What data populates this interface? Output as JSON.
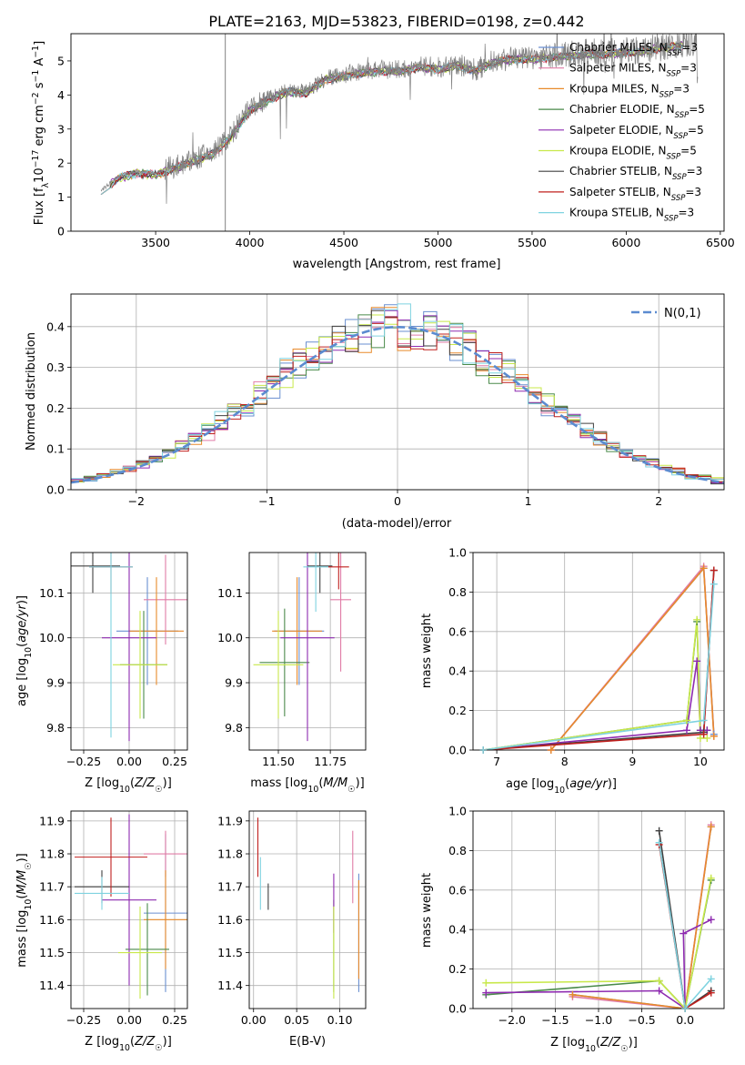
{
  "figure_title": "PLATE=2163, MJD=53823, FIBERID=0198, z=0.442",
  "series_colors": [
    "#6a8fd0",
    "#e07ca6",
    "#e88a2b",
    "#4a8a4a",
    "#8e2bb0",
    "#c8e84a",
    "#404040",
    "#c0201e",
    "#7fd3e0"
  ],
  "series_names": [
    "Chabrier MILES, N_SSP=3",
    "Salpeter MILES, N_SSP=3",
    "Kroupa MILES, N_SSP=3",
    "Chabrier ELODIE, N_SSP=5",
    "Salpeter ELODIE, N_SSP=5",
    "Kroupa ELODIE, N_SSP=5",
    "Chabrier STELIB, N_SSP=3",
    "Salpeter STELIB, N_SSP=3",
    "Kroupa STELIB, N_SSP=3"
  ],
  "chart_data": [
    {
      "id": "spectrum",
      "type": "line",
      "xlabel": "wavelength [Angstrom, rest frame]",
      "ylabel": "Flux [f_λ 10^-17 erg cm^-2 s^-1 A^-1]",
      "xlim": [
        3050,
        6520
      ],
      "ylim": [
        0,
        5.8
      ],
      "xticks": [
        3500,
        4000,
        4500,
        5000,
        5500,
        6000,
        6500
      ],
      "yticks": [
        0,
        1,
        2,
        3,
        4,
        5
      ],
      "legend_position": "right",
      "data_color": "#808080",
      "data_range": [
        3210,
        6380
      ],
      "data_trend": [
        [
          3210,
          1.2
        ],
        [
          3300,
          1.6
        ],
        [
          3400,
          1.75
        ],
        [
          3500,
          1.7
        ],
        [
          3600,
          1.9
        ],
        [
          3700,
          2.1
        ],
        [
          3800,
          2.3
        ],
        [
          3900,
          2.8
        ],
        [
          4000,
          3.6
        ],
        [
          4100,
          3.9
        ],
        [
          4200,
          4.15
        ],
        [
          4300,
          4.1
        ],
        [
          4400,
          4.5
        ],
        [
          4500,
          4.6
        ],
        [
          4600,
          4.7
        ],
        [
          4700,
          4.75
        ],
        [
          4800,
          4.75
        ],
        [
          4900,
          4.85
        ],
        [
          5000,
          4.8
        ],
        [
          5100,
          4.9
        ],
        [
          5200,
          4.75
        ],
        [
          5300,
          5.0
        ],
        [
          5400,
          5.1
        ],
        [
          5500,
          5.1
        ],
        [
          5600,
          5.15
        ],
        [
          5700,
          5.2
        ],
        [
          5800,
          5.25
        ],
        [
          5900,
          5.25
        ],
        [
          6000,
          5.3
        ],
        [
          6100,
          5.35
        ],
        [
          6200,
          5.45
        ],
        [
          6300,
          5.5
        ],
        [
          6380,
          5.6
        ]
      ],
      "models_range": [
        3210,
        6300
      ]
    },
    {
      "id": "residuals",
      "type": "histogram",
      "xlabel": "(data-model)/error",
      "ylabel": "Normed distribution",
      "xlim": [
        -2.5,
        2.5
      ],
      "ylim": [
        0,
        0.48
      ],
      "xticks": [
        -2,
        -1,
        0,
        1,
        2
      ],
      "yticks": [
        0.0,
        0.1,
        0.2,
        0.3,
        0.4
      ],
      "grid": true,
      "legend": "N(0,1)",
      "legend_position": "top-right",
      "bin_width": 0.1,
      "curve": "normal(0,1)"
    },
    {
      "id": "age-vs-Z",
      "type": "errorbar",
      "xlabel": "Z [log10(Z/Z☉)]",
      "ylabel": "age  [log10(age/yr)]",
      "xlim": [
        -0.32,
        0.32
      ],
      "ylim": [
        9.75,
        10.19
      ],
      "xticks": [
        -0.25,
        0.0,
        0.25
      ],
      "yticks": [
        9.8,
        9.9,
        10.0,
        10.1
      ],
      "grid": true,
      "points": [
        {
          "s": 0,
          "x": 0.1,
          "y": 10.015,
          "xe": 0.17,
          "ye": 0.12
        },
        {
          "s": 1,
          "x": 0.2,
          "y": 10.085,
          "xe": 0.12,
          "ye": 0.1
        },
        {
          "s": 2,
          "x": 0.15,
          "y": 10.015,
          "xe": 0.15,
          "ye": 0.12
        },
        {
          "s": 3,
          "x": 0.08,
          "y": 9.94,
          "xe": 0.13,
          "ye": 0.12
        },
        {
          "s": 4,
          "x": 0.0,
          "y": 10.0,
          "xe": 0.15,
          "ye": 0.23
        },
        {
          "s": 5,
          "x": 0.06,
          "y": 9.94,
          "xe": 0.15,
          "ye": 0.12
        },
        {
          "s": 6,
          "x": -0.2,
          "y": 10.16,
          "xe": 0.15,
          "ye": 0.06
        },
        {
          "s": 7,
          "x": -0.1,
          "y": 10.158,
          "xe": 0.12,
          "ye": 0.06
        },
        {
          "s": 8,
          "x": -0.1,
          "y": 10.158,
          "xe": 0.12,
          "ye": 0.38
        }
      ]
    },
    {
      "id": "age-vs-mass",
      "type": "errorbar",
      "xlabel": "mass [log10(M/M☉)]",
      "xlim": [
        11.36,
        11.92
      ],
      "ylim": [
        9.75,
        10.19
      ],
      "xticks": [
        11.5,
        11.75
      ],
      "yticks": [
        9.8,
        9.9,
        10.0,
        10.1
      ],
      "grid": true,
      "points": [
        {
          "s": 0,
          "x": 11.6,
          "y": 10.015,
          "xe": 0.12,
          "ye": 0.12
        },
        {
          "s": 1,
          "x": 11.8,
          "y": 10.085,
          "xe": 0.05,
          "ye": 0.16
        },
        {
          "s": 2,
          "x": 11.59,
          "y": 10.015,
          "xe": 0.12,
          "ye": 0.12
        },
        {
          "s": 3,
          "x": 11.53,
          "y": 9.945,
          "xe": 0.12,
          "ye": 0.12
        },
        {
          "s": 4,
          "x": 11.64,
          "y": 10.0,
          "xe": 0.13,
          "ye": 0.23
        },
        {
          "s": 5,
          "x": 11.5,
          "y": 9.94,
          "xe": 0.12,
          "ye": 0.12
        },
        {
          "s": 6,
          "x": 11.7,
          "y": 10.16,
          "xe": 0.06,
          "ye": 0.06
        },
        {
          "s": 7,
          "x": 11.79,
          "y": 10.158,
          "xe": 0.05,
          "ye": 0.05
        },
        {
          "s": 8,
          "x": 11.68,
          "y": 10.158,
          "xe": 0.06,
          "ye": 0.1
        }
      ]
    },
    {
      "id": "mass-weight-vs-age",
      "type": "line",
      "xlabel": "age  [log10(age/yr)]",
      "ylabel": "mass weight",
      "xlim": [
        6.65,
        10.35
      ],
      "ylim": [
        0,
        1.0
      ],
      "xticks": [
        7,
        8,
        9,
        10
      ],
      "yticks": [
        0.0,
        0.2,
        0.4,
        0.6,
        0.8,
        1.0
      ],
      "grid": true,
      "series": [
        {
          "s": 0,
          "x": [
            7.8,
            10.05,
            10.2
          ],
          "y": [
            0.0,
            0.92,
            0.08
          ]
        },
        {
          "s": 1,
          "x": [
            7.8,
            10.05,
            10.2
          ],
          "y": [
            0.0,
            0.93,
            0.07
          ]
        },
        {
          "s": 2,
          "x": [
            7.8,
            10.05,
            10.2
          ],
          "y": [
            0.0,
            0.92,
            0.07
          ]
        },
        {
          "s": 3,
          "x": [
            6.8,
            9.8,
            9.95,
            10.0,
            10.1
          ],
          "y": [
            0.0,
            0.15,
            0.65,
            0.1,
            0.1
          ]
        },
        {
          "s": 4,
          "x": [
            6.8,
            9.8,
            9.95,
            10.0,
            10.1
          ],
          "y": [
            0.0,
            0.1,
            0.45,
            0.1,
            0.1
          ]
        },
        {
          "s": 5,
          "x": [
            6.8,
            9.8,
            9.95,
            10.0,
            10.1
          ],
          "y": [
            0.0,
            0.15,
            0.66,
            0.06,
            0.06
          ]
        },
        {
          "s": 6,
          "x": [
            6.8,
            10.05,
            10.2
          ],
          "y": [
            0.0,
            0.09,
            0.91
          ]
        },
        {
          "s": 7,
          "x": [
            6.8,
            10.05,
            10.2
          ],
          "y": [
            0.0,
            0.08,
            0.91
          ]
        },
        {
          "s": 8,
          "x": [
            6.8,
            10.05,
            10.2
          ],
          "y": [
            0.0,
            0.15,
            0.84
          ]
        }
      ]
    },
    {
      "id": "mass-vs-Z",
      "type": "errorbar",
      "xlabel": "Z [log10(Z/Z☉)]",
      "ylabel": "mass [log10(M/M☉)]",
      "xlim": [
        -0.32,
        0.32
      ],
      "ylim": [
        11.33,
        11.93
      ],
      "xticks": [
        -0.25,
        0.0,
        0.25
      ],
      "yticks": [
        11.4,
        11.5,
        11.6,
        11.7,
        11.8,
        11.9
      ],
      "grid": true,
      "points": [
        {
          "s": 0,
          "x": 0.2,
          "y": 11.62,
          "xe": 0.12,
          "ye": 0.24
        },
        {
          "s": 1,
          "x": 0.2,
          "y": 11.8,
          "xe": 0.12,
          "ye": 0.07
        },
        {
          "s": 2,
          "x": 0.2,
          "y": 11.6,
          "xe": 0.12,
          "ye": 0.15
        },
        {
          "s": 3,
          "x": 0.1,
          "y": 11.51,
          "xe": 0.12,
          "ye": 0.14
        },
        {
          "s": 4,
          "x": 0.0,
          "y": 11.66,
          "xe": 0.15,
          "ye": 0.26
        },
        {
          "s": 5,
          "x": 0.06,
          "y": 11.5,
          "xe": 0.12,
          "ye": 0.14
        },
        {
          "s": 6,
          "x": -0.15,
          "y": 11.7,
          "xe": 0.15,
          "ye": 0.05
        },
        {
          "s": 7,
          "x": -0.1,
          "y": 11.79,
          "xe": 0.2,
          "ye": 0.12
        },
        {
          "s": 8,
          "x": -0.15,
          "y": 11.68,
          "xe": 0.15,
          "ye": 0.05
        }
      ]
    },
    {
      "id": "mass-vs-ebv",
      "type": "errorbar",
      "xlabel": "E(B-V)",
      "xlim": [
        -0.005,
        0.13
      ],
      "ylim": [
        11.33,
        11.93
      ],
      "xticks": [
        0.0,
        0.05,
        0.1
      ],
      "yticks": [
        11.4,
        11.5,
        11.6,
        11.7,
        11.8,
        11.9
      ],
      "grid": true,
      "points": [
        {
          "s": 0,
          "x": 0.122,
          "y": 11.56,
          "xe": 0.0,
          "ye": 0.18
        },
        {
          "s": 1,
          "x": 0.115,
          "y": 11.76,
          "xe": 0.0,
          "ye": 0.11
        },
        {
          "s": 2,
          "x": 0.122,
          "y": 11.57,
          "xe": 0.0,
          "ye": 0.15
        },
        {
          "s": 3,
          "x": 0.093,
          "y": 11.52,
          "xe": 0.0,
          "ye": 0.14
        },
        {
          "s": 4,
          "x": 0.093,
          "y": 11.65,
          "xe": 0.0,
          "ye": 0.09
        },
        {
          "s": 5,
          "x": 0.093,
          "y": 11.5,
          "xe": 0.0,
          "ye": 0.14
        },
        {
          "s": 6,
          "x": 0.017,
          "y": 11.67,
          "xe": 0.0,
          "ye": 0.04
        },
        {
          "s": 7,
          "x": 0.005,
          "y": 11.82,
          "xe": 0.0,
          "ye": 0.09
        },
        {
          "s": 8,
          "x": 0.008,
          "y": 11.71,
          "xe": 0.0,
          "ye": 0.08
        }
      ]
    },
    {
      "id": "mass-weight-vs-Z",
      "type": "line",
      "xlabel": "Z [log10(Z/Z☉)]",
      "ylabel": "mass weight",
      "xlim": [
        -2.45,
        0.45
      ],
      "ylim": [
        0,
        1.0
      ],
      "xticks": [
        -2.0,
        -1.5,
        -1.0,
        -0.5,
        0.0
      ],
      "yticks": [
        0.0,
        0.2,
        0.4,
        0.6,
        0.8,
        1.0
      ],
      "grid": true,
      "series": [
        {
          "s": 0,
          "x": [
            -1.3,
            0.0,
            0.3
          ],
          "y": [
            0.07,
            0.0,
            0.92
          ]
        },
        {
          "s": 1,
          "x": [
            -1.3,
            0.0,
            0.3
          ],
          "y": [
            0.06,
            0.0,
            0.93
          ]
        },
        {
          "s": 2,
          "x": [
            -1.3,
            0.0,
            0.3
          ],
          "y": [
            0.07,
            0.0,
            0.92
          ]
        },
        {
          "s": 3,
          "x": [
            -2.3,
            -0.3,
            0.0,
            0.3
          ],
          "y": [
            0.07,
            0.14,
            0.0,
            0.65
          ]
        },
        {
          "s": 4,
          "x": [
            -2.3,
            -0.3,
            0.0,
            -0.02,
            0.3
          ],
          "y": [
            0.08,
            0.09,
            0.0,
            0.38,
            0.45
          ]
        },
        {
          "s": 5,
          "x": [
            -2.3,
            -0.3,
            0.0,
            0.3
          ],
          "y": [
            0.13,
            0.14,
            0.0,
            0.66
          ]
        },
        {
          "s": 6,
          "x": [
            -0.3,
            0.0,
            0.3
          ],
          "y": [
            0.9,
            0.0,
            0.09
          ]
        },
        {
          "s": 7,
          "x": [
            -0.3,
            0.0,
            0.3
          ],
          "y": [
            0.83,
            0.0,
            0.08
          ]
        },
        {
          "s": 8,
          "x": [
            -0.3,
            0.0,
            0.3
          ],
          "y": [
            0.84,
            0.0,
            0.15
          ]
        }
      ]
    }
  ]
}
